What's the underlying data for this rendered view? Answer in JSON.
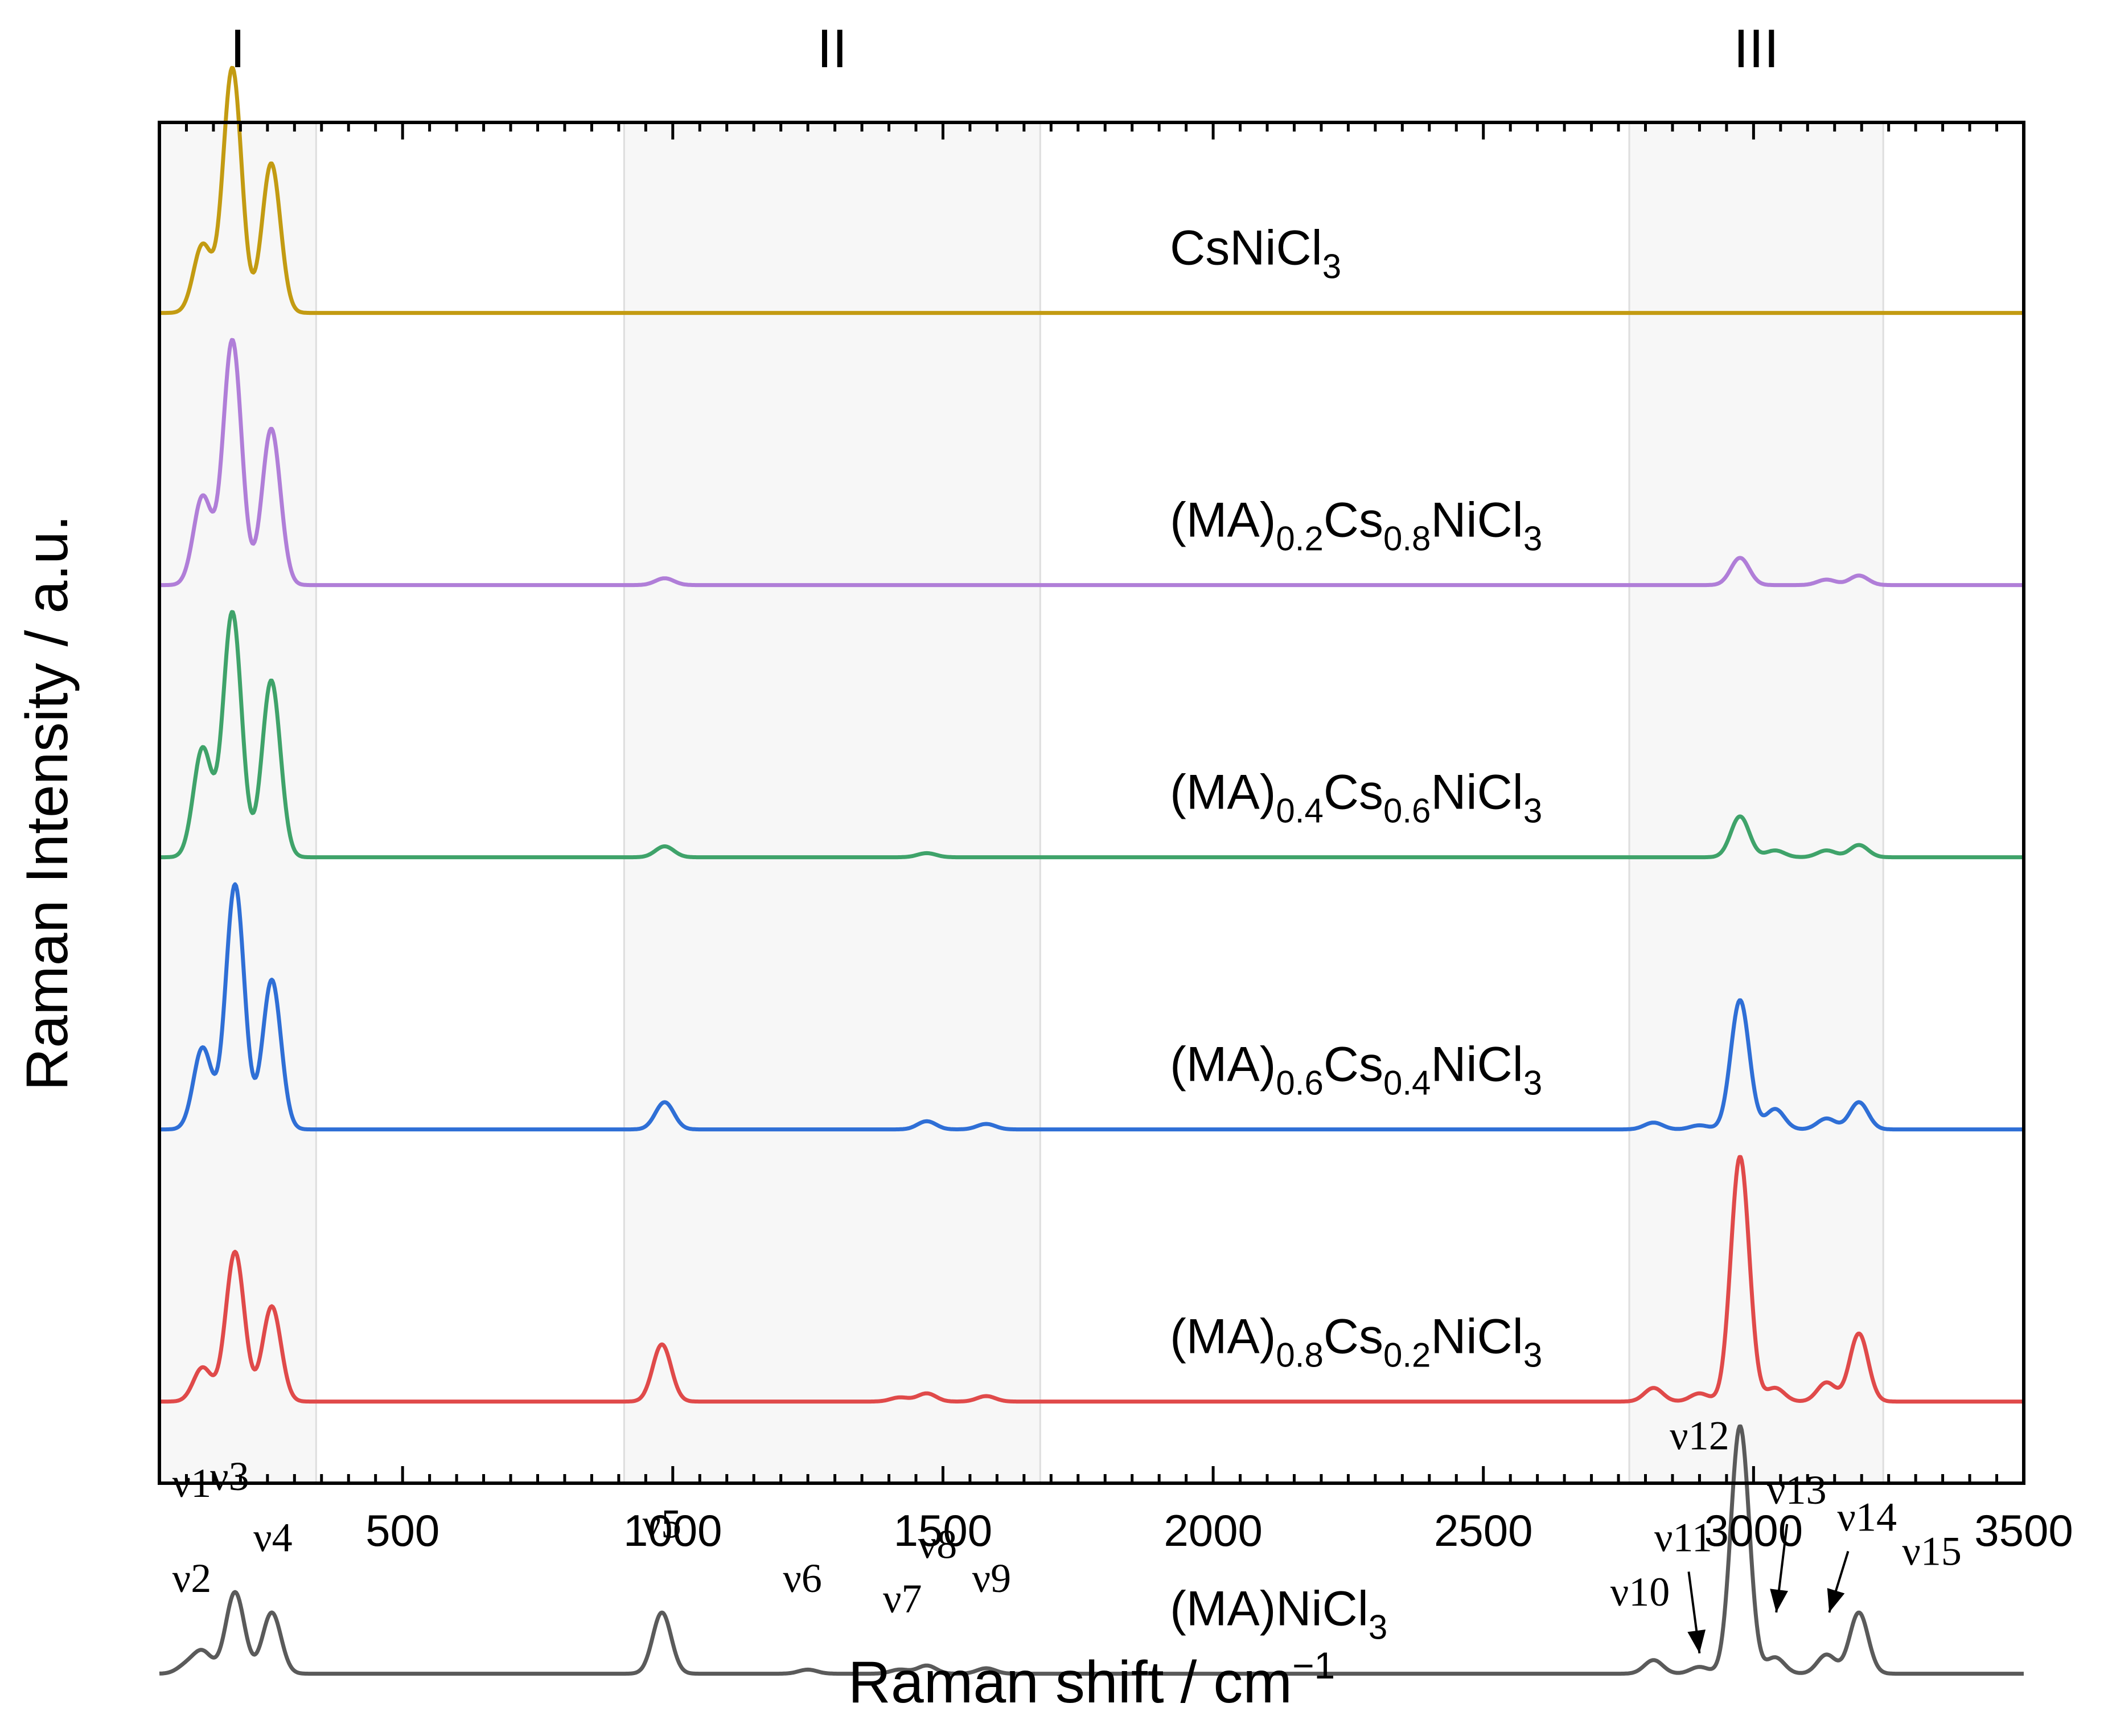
{
  "chart_data": {
    "type": "line",
    "xlabel": "Raman shift / cm",
    "xlabel_sup": "−1",
    "ylabel": "Raman Intensity / a.u.",
    "xlim": [
      50,
      3500
    ],
    "ylim": [
      -0.8,
      9.2
    ],
    "ticks": [
      500,
      1000,
      1500,
      2000,
      2500,
      3000,
      3500
    ],
    "tick_labels": [
      "500",
      "1000",
      "1500",
      "2000",
      "2500",
      "3000",
      "3500"
    ],
    "regions": [
      {
        "label": "I",
        "from": 50,
        "to": 340
      },
      {
        "label": "II",
        "from": 910,
        "to": 1680
      },
      {
        "label": "III",
        "from": 2770,
        "to": 3240
      }
    ],
    "series": [
      {
        "name": "CsNiCl3",
        "label_parts": [
          {
            "t": "CsNiCl"
          },
          {
            "t": "3",
            "sub": true
          }
        ],
        "color": "#c39b12",
        "offset": 7.8,
        "peaks": [
          [
            130,
            0.5
          ],
          [
            185,
            1.8
          ],
          [
            257,
            1.1
          ]
        ]
      },
      {
        "name": "(MA)0.2Cs0.8NiCl3",
        "label_parts": [
          {
            "t": "(MA)"
          },
          {
            "t": "0.2",
            "sub": true
          },
          {
            "t": "Cs"
          },
          {
            "t": "0.8",
            "sub": true
          },
          {
            "t": "NiCl"
          },
          {
            "t": "3",
            "sub": true
          }
        ],
        "color": "#b07ed8",
        "offset": 5.8,
        "peaks": [
          [
            130,
            0.65
          ],
          [
            185,
            1.8
          ],
          [
            257,
            1.15
          ],
          [
            985,
            0.05
          ],
          [
            2975,
            0.2
          ],
          [
            3135,
            0.04
          ],
          [
            3195,
            0.07
          ]
        ]
      },
      {
        "name": "(MA)0.4Cs0.6NiCl3",
        "label_parts": [
          {
            "t": "(MA)"
          },
          {
            "t": "0.4",
            "sub": true
          },
          {
            "t": "Cs"
          },
          {
            "t": "0.6",
            "sub": true
          },
          {
            "t": "NiCl"
          },
          {
            "t": "3",
            "sub": true
          }
        ],
        "color": "#3fa36a",
        "offset": 3.8,
        "peaks": [
          [
            130,
            0.8
          ],
          [
            185,
            1.8
          ],
          [
            257,
            1.3
          ],
          [
            985,
            0.08
          ],
          [
            1470,
            0.03
          ],
          [
            2975,
            0.3
          ],
          [
            3040,
            0.05
          ],
          [
            3135,
            0.05
          ],
          [
            3195,
            0.09
          ]
        ]
      },
      {
        "name": "(MA)0.6Cs0.4NiCl3",
        "label_parts": [
          {
            "t": "(MA)"
          },
          {
            "t": "0.6",
            "sub": true
          },
          {
            "t": "Cs"
          },
          {
            "t": "0.4",
            "sub": true
          },
          {
            "t": "NiCl"
          },
          {
            "t": "3",
            "sub": true
          }
        ],
        "color": "#2f6fd6",
        "offset": 1.8,
        "peaks": [
          [
            130,
            0.6
          ],
          [
            190,
            1.8
          ],
          [
            258,
            1.1
          ],
          [
            985,
            0.2
          ],
          [
            1470,
            0.06
          ],
          [
            1580,
            0.04
          ],
          [
            2815,
            0.05
          ],
          [
            2900,
            0.03
          ],
          [
            2975,
            0.95
          ],
          [
            3040,
            0.15
          ],
          [
            3135,
            0.08
          ],
          [
            3195,
            0.2
          ]
        ]
      },
      {
        "name": "(MA)0.8Cs0.2NiCl3",
        "label_parts": [
          {
            "t": "(MA)"
          },
          {
            "t": "0.8",
            "sub": true
          },
          {
            "t": "Cs"
          },
          {
            "t": "0.2",
            "sub": true
          },
          {
            "t": "NiCl"
          },
          {
            "t": "3",
            "sub": true
          }
        ],
        "color": "#e04a4a",
        "offset": -0.2,
        "peaks": [
          [
            130,
            0.25
          ],
          [
            190,
            1.1
          ],
          [
            258,
            0.7
          ],
          [
            980,
            0.42
          ],
          [
            1420,
            0.03
          ],
          [
            1470,
            0.06
          ],
          [
            1580,
            0.04
          ],
          [
            2815,
            0.1
          ],
          [
            2900,
            0.06
          ],
          [
            2975,
            1.8
          ],
          [
            3040,
            0.1
          ],
          [
            3135,
            0.14
          ],
          [
            3195,
            0.5
          ]
        ]
      },
      {
        "name": "(MA)NiCl3",
        "label_parts": [
          {
            "t": "(MA)NiCl"
          },
          {
            "t": "3",
            "sub": true
          }
        ],
        "color": "#5a5a5a",
        "offset": -2.2,
        "peaks": [
          [
            100,
            0.06
          ],
          [
            130,
            0.16
          ],
          [
            190,
            0.6
          ],
          [
            258,
            0.45
          ],
          [
            980,
            0.45
          ],
          [
            1250,
            0.03
          ],
          [
            1420,
            0.03
          ],
          [
            1470,
            0.06
          ],
          [
            1580,
            0.04
          ],
          [
            2815,
            0.1
          ],
          [
            2900,
            0.05
          ],
          [
            2975,
            1.82
          ],
          [
            3040,
            0.12
          ],
          [
            3135,
            0.14
          ],
          [
            3195,
            0.45
          ]
        ]
      }
    ],
    "peak_labels": [
      {
        "label": "ν1",
        "x": 110,
        "y": -0.9
      },
      {
        "label": "ν2",
        "x": 110,
        "y": -1.6
      },
      {
        "label": "ν3",
        "x": 180,
        "y": -0.85
      },
      {
        "label": "ν4",
        "x": 260,
        "y": -1.3
      },
      {
        "label": "ν5",
        "x": 980,
        "y": -1.2
      },
      {
        "label": "ν6",
        "x": 1240,
        "y": -1.6
      },
      {
        "label": "ν7",
        "x": 1425,
        "y": -1.75
      },
      {
        "label": "ν8",
        "x": 1490,
        "y": -1.35
      },
      {
        "label": "ν9",
        "x": 1590,
        "y": -1.6
      },
      {
        "label": "ν10",
        "x": 2790,
        "y": -1.7
      },
      {
        "label": "ν11",
        "x": 2870,
        "y": -1.3
      },
      {
        "label": "ν12",
        "x": 2900,
        "y": -0.55
      },
      {
        "label": "ν13",
        "x": 3080,
        "y": -0.95
      },
      {
        "label": "ν14",
        "x": 3210,
        "y": -1.15
      },
      {
        "label": "ν15",
        "x": 3330,
        "y": -1.4
      }
    ],
    "arrows": [
      {
        "from": [
          2880,
          -1.45
        ],
        "to": [
          2900,
          -2.05
        ]
      },
      {
        "from": [
          3062,
          -1.1
        ],
        "to": [
          3042,
          -1.75
        ]
      },
      {
        "from": [
          3175,
          -1.3
        ],
        "to": [
          3140,
          -1.75
        ]
      }
    ]
  }
}
